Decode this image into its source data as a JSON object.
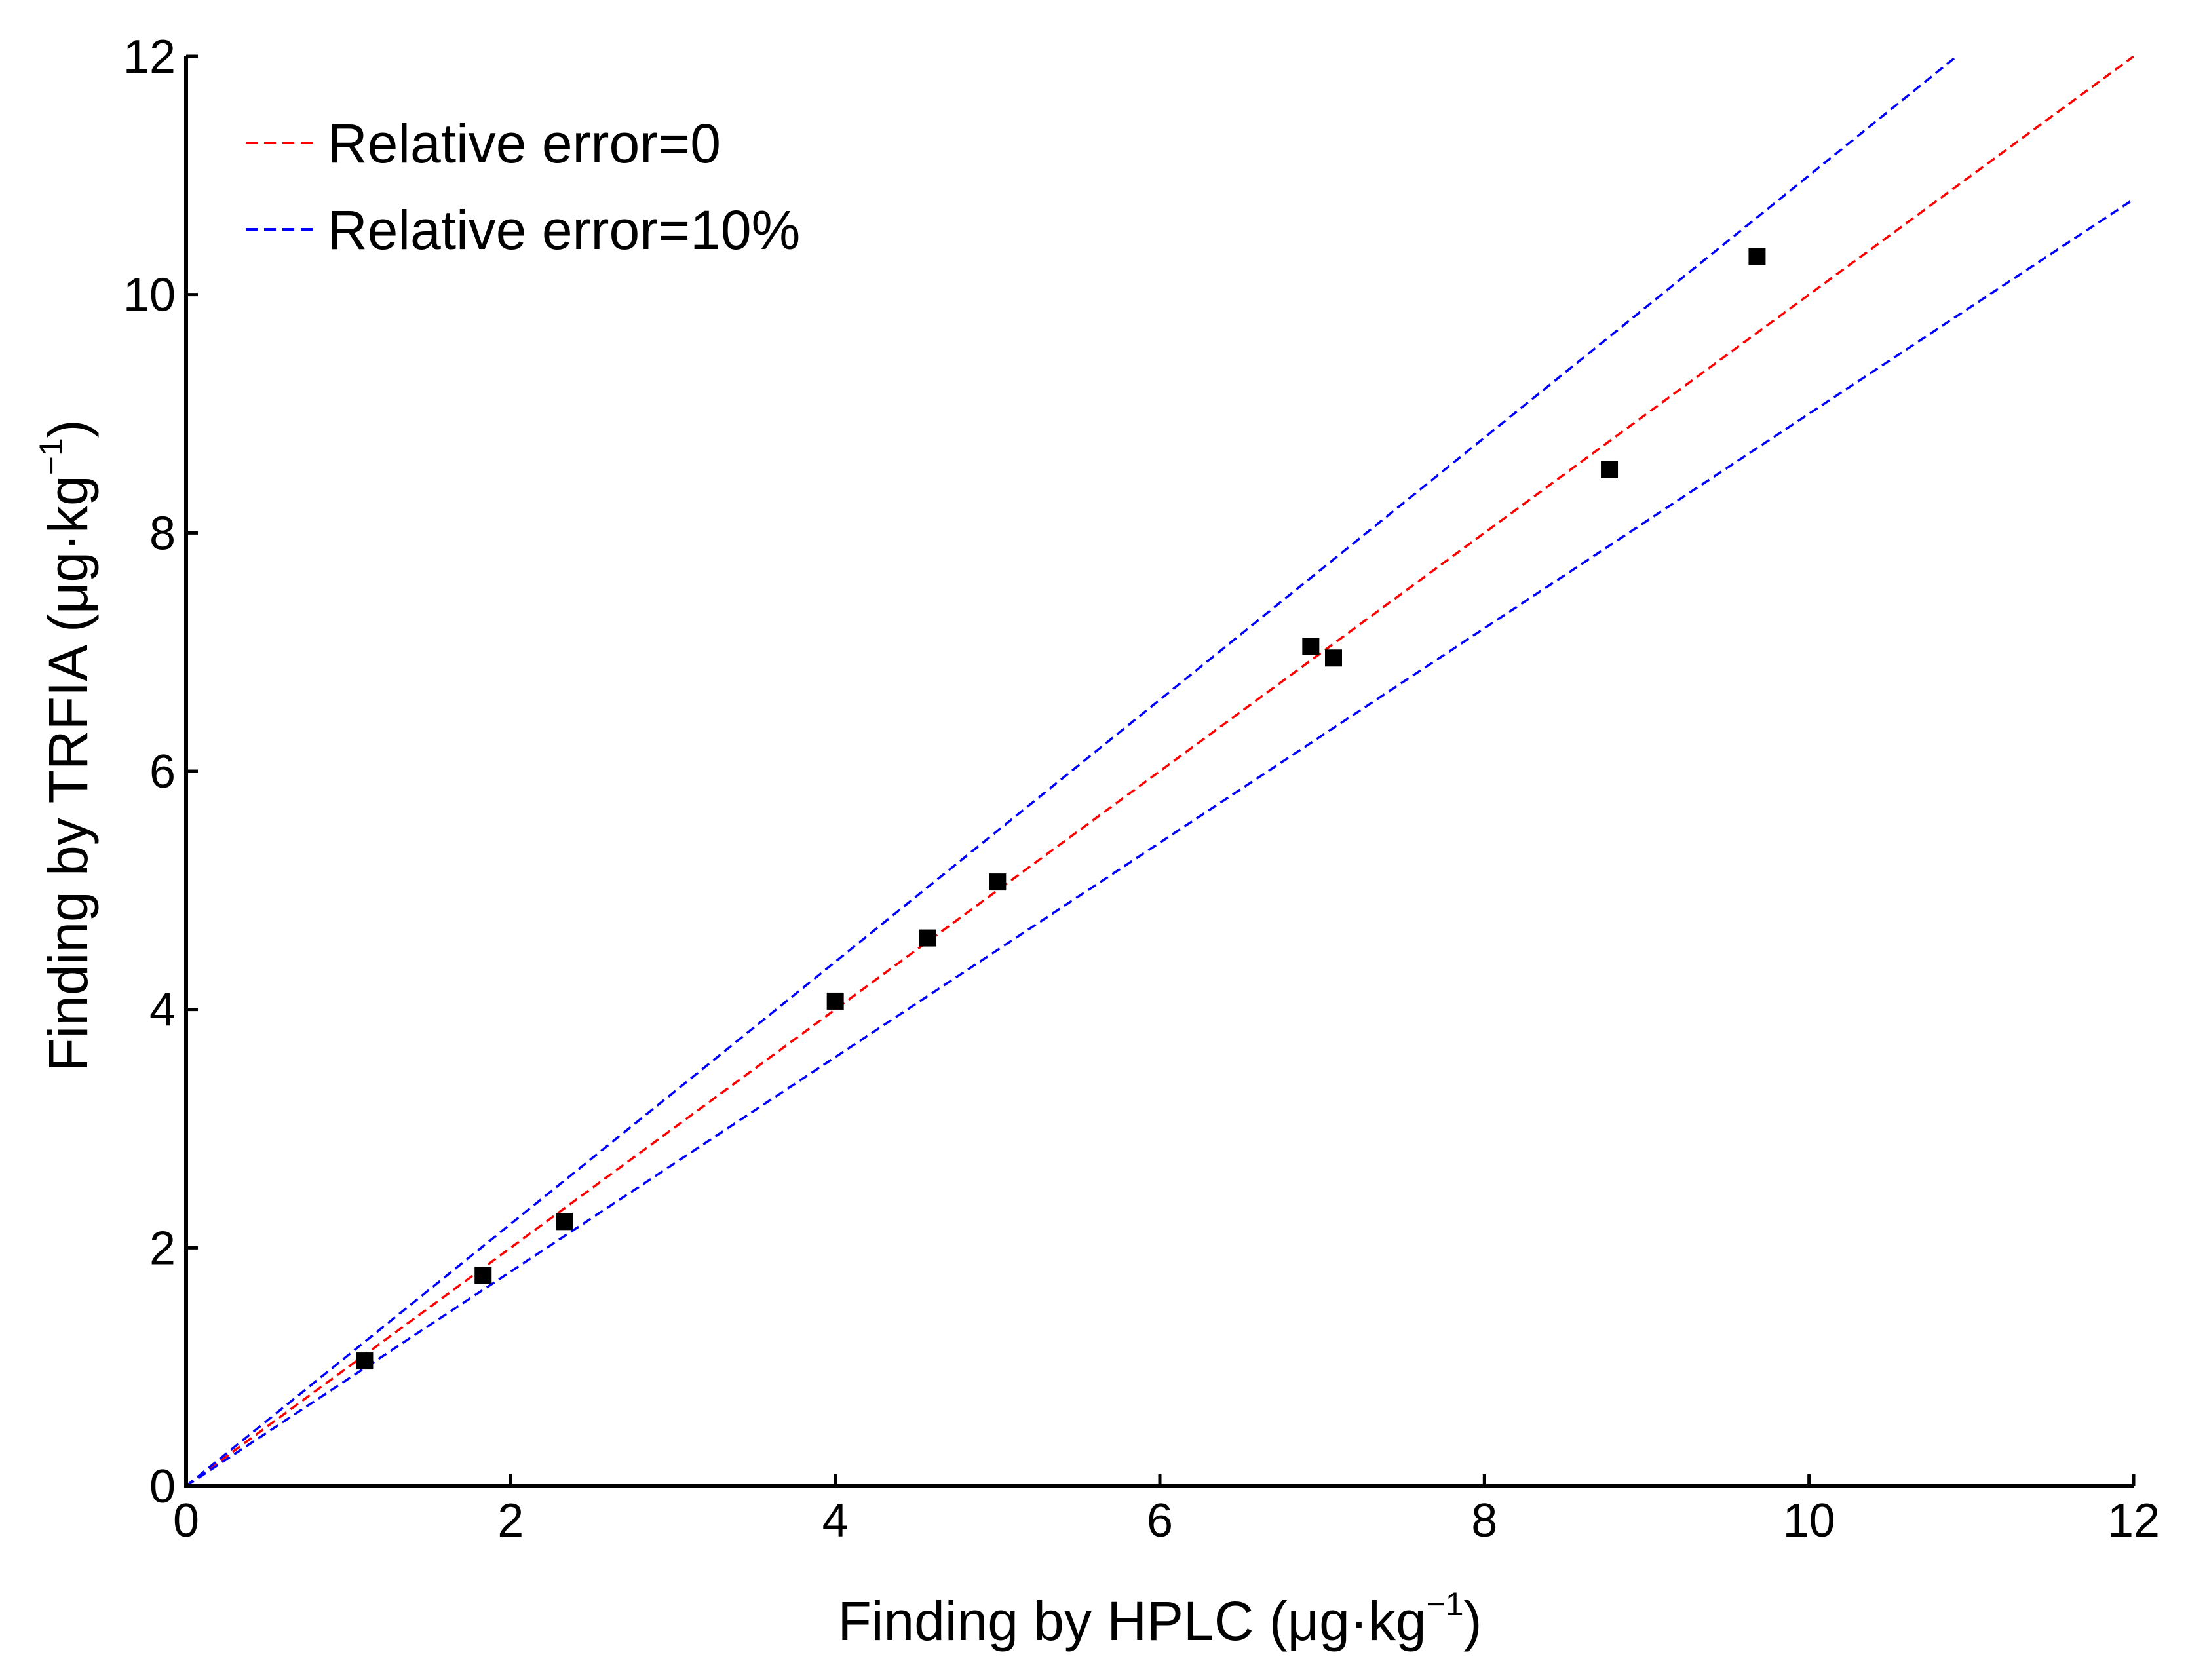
{
  "chart_data": {
    "type": "scatter",
    "title": "",
    "xlabel": "Finding by HPLC (μg·kg",
    "xlabel_sup": "−1",
    "xlabel_close": ")",
    "ylabel": "Finding by TRFIA (μg·kg",
    "ylabel_sup": "−1",
    "ylabel_close": ")",
    "xlim": [
      0,
      12
    ],
    "ylim": [
      0,
      12
    ],
    "xticks": [
      "0",
      "2",
      "4",
      "6",
      "8",
      "10",
      "12"
    ],
    "yticks": [
      "0",
      "2",
      "4",
      "6",
      "8",
      "10",
      "12"
    ],
    "grid": false,
    "legend_position": "top-left",
    "legend": [
      {
        "label": "Relative error=0",
        "color": "#ff0000",
        "style": "dashed"
      },
      {
        "label": "Relative error=10%",
        "color": "#0000ff",
        "style": "dashed"
      }
    ],
    "reference_lines": [
      {
        "name": "Relative error=0",
        "slope": 1.0,
        "color": "#ff0000"
      },
      {
        "name": "Relative error=10%",
        "slope": 1.1,
        "color": "#0000ff"
      },
      {
        "name": "Relative error=10%",
        "slope": 0.9,
        "color": "#0000ff"
      }
    ],
    "points": [
      {
        "x": 1.1,
        "y": 1.05
      },
      {
        "x": 1.83,
        "y": 1.77
      },
      {
        "x": 2.33,
        "y": 2.22
      },
      {
        "x": 4.0,
        "y": 4.07
      },
      {
        "x": 4.57,
        "y": 4.6
      },
      {
        "x": 5.0,
        "y": 5.07
      },
      {
        "x": 6.93,
        "y": 7.05
      },
      {
        "x": 7.07,
        "y": 6.95
      },
      {
        "x": 8.77,
        "y": 8.53
      },
      {
        "x": 9.68,
        "y": 10.32
      }
    ],
    "marker_color": "#000000"
  }
}
